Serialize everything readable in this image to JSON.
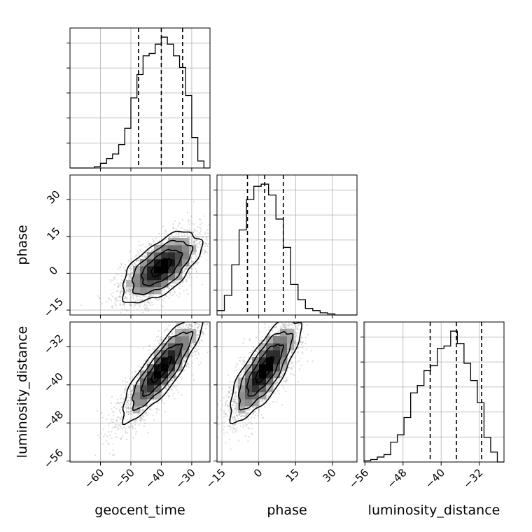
{
  "chart_data": {
    "type": "corner",
    "parameters": [
      "geocent_time",
      "phase",
      "luminosity_distance"
    ],
    "axis_labels": {
      "geocent_time": "geocent_time",
      "phase": "phase",
      "luminosity_distance": "luminosity_distance"
    },
    "ranges": {
      "geocent_time": [
        -70,
        -24
      ],
      "phase": [
        -17,
        40
      ],
      "luminosity_distance": [
        -56.2,
        -26.8
      ]
    },
    "ticks": {
      "geocent_time": [
        -60,
        -50,
        -40,
        -30
      ],
      "phase": [
        -15,
        0,
        15,
        30
      ],
      "luminosity_distance": [
        -56,
        -48,
        -40,
        -32
      ]
    },
    "tick_labels": {
      "geocent_time": [
        "−60",
        "−50",
        "−40",
        "−30"
      ],
      "phase": [
        "−15",
        "0",
        "15",
        "30"
      ],
      "luminosity_distance": [
        "−56",
        "−48",
        "−40",
        "−32"
      ]
    },
    "grid": true,
    "histograms": {
      "geocent_time": {
        "bin_edges": [
          -70,
          -68,
          -66,
          -64,
          -62,
          -60,
          -58,
          -56,
          -54,
          -52,
          -50,
          -48,
          -46,
          -44,
          -42,
          -40,
          -38,
          -36,
          -34,
          -32,
          -30,
          -28,
          -26,
          -24
        ],
        "counts": [
          0,
          0,
          0,
          0,
          0.5,
          2,
          4,
          6,
          10,
          17,
          30,
          40,
          48,
          49,
          53,
          56,
          53,
          48,
          43,
          31,
          13,
          3,
          0
        ],
        "quantiles": [
          -47.5,
          -40,
          -33
        ]
      },
      "phase": {
        "bin_edges": [
          -17,
          -14,
          -11,
          -8,
          -5,
          -2,
          1,
          4,
          7,
          10,
          13,
          16,
          19,
          22,
          25,
          28,
          31,
          34,
          37,
          40
        ],
        "counts": [
          2,
          9,
          23,
          39,
          53,
          59,
          60,
          55,
          44,
          31,
          14,
          7,
          3,
          2,
          1,
          0.5,
          0,
          0,
          0
        ],
        "quantiles": [
          -4.6,
          2.4,
          10
        ]
      },
      "luminosity_distance": {
        "bin_edges": [
          -56.2,
          -54.8,
          -53.4,
          -52.0,
          -50.6,
          -49.2,
          -47.8,
          -46.4,
          -45.0,
          -43.6,
          -42.2,
          -40.8,
          -39.4,
          -38.0,
          -36.6,
          -35.2,
          -33.8,
          -32.4,
          -31.0,
          -29.6,
          -28.2,
          -26.8
        ],
        "counts": [
          0.5,
          1,
          2,
          3,
          8,
          11,
          18,
          28,
          31,
          37,
          39,
          46,
          47,
          53,
          48,
          40,
          33,
          24,
          10,
          4,
          0
        ],
        "quantiles": [
          -42.3,
          -36.8,
          -31.5
        ]
      }
    },
    "pairs": [
      {
        "x": "geocent_time",
        "y": "phase",
        "mean": [
          -40,
          2.4
        ],
        "std": [
          6.5,
          7.2
        ],
        "correlation": 0.62,
        "density_peak": [
          -40,
          1
        ],
        "contour_levels_sigma": [
          0.5,
          1,
          1.5,
          2
        ]
      },
      {
        "x": "geocent_time",
        "y": "luminosity_distance",
        "mean": [
          -40,
          -36.8
        ],
        "std": [
          6.5,
          5.4
        ],
        "correlation": 0.85,
        "density_peak": [
          -40,
          -36
        ],
        "contour_levels_sigma": [
          0.5,
          1,
          1.5,
          2
        ]
      },
      {
        "x": "phase",
        "y": "luminosity_distance",
        "mean": [
          2.4,
          -36.8
        ],
        "std": [
          7.2,
          5.4
        ],
        "correlation": 0.78,
        "density_peak": [
          1,
          -36
        ],
        "contour_levels_sigma": [
          0.5,
          1,
          1.5,
          2
        ]
      }
    ],
    "colors": {
      "histogram_line": "#000000",
      "quantile_line": "#000000",
      "contour_line": "#000000",
      "density_cmap": [
        "#ffffff",
        "#000000"
      ],
      "samples": "#9a9a9a",
      "grid": "#b0b0b0"
    }
  }
}
